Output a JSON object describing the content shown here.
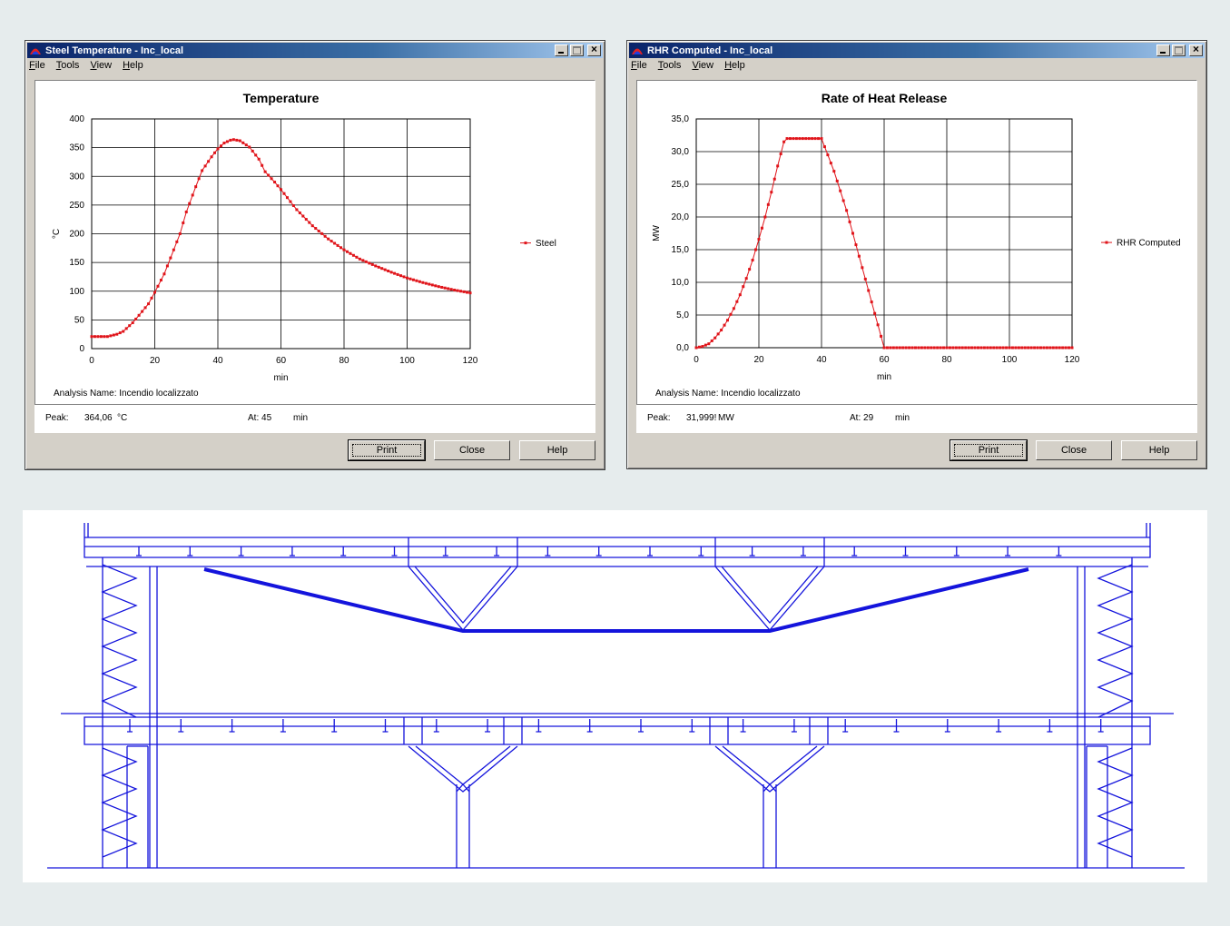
{
  "windows": [
    {
      "id": "steel",
      "title": "Steel Temperature - Inc_local",
      "menu": [
        "File",
        "Tools",
        "View",
        "Help"
      ],
      "chart_title": "Temperature",
      "analysis": "Analysis Name: Incendio localizzato",
      "peak_label": "Peak:",
      "peak_value": "364,06",
      "peak_unit": "°C",
      "at_label": "At: 45",
      "at_unit": "min",
      "buttons": [
        "Print",
        "Close",
        "Help"
      ]
    },
    {
      "id": "rhr",
      "title": "RHR Computed - Inc_local",
      "menu": [
        "File",
        "Tools",
        "View",
        "Help"
      ],
      "chart_title": "Rate of Heat Release",
      "analysis": "Analysis Name: Incendio localizzato",
      "peak_label": "Peak:",
      "peak_value": "31,999!",
      "peak_unit": "MW",
      "at_label": "At: 29",
      "at_unit": "min",
      "buttons": [
        "Print",
        "Close",
        "Help"
      ]
    }
  ],
  "colors": {
    "series": "#e0141a",
    "drawing": "#1414dc",
    "titlebar": "#0a246a"
  },
  "chart_data": [
    {
      "type": "line",
      "title": "Temperature",
      "xlabel": "min",
      "ylabel": "°C",
      "xlim": [
        0,
        120
      ],
      "ylim": [
        0,
        400
      ],
      "xticks": [
        "0",
        "20",
        "40",
        "60",
        "80",
        "100",
        "120"
      ],
      "yticks": [
        "0",
        "50",
        "100",
        "150",
        "200",
        "250",
        "300",
        "350",
        "400"
      ],
      "grid": true,
      "legend": "right",
      "series": [
        {
          "name": "Steel",
          "x": [
            0,
            5,
            8,
            10,
            13,
            15,
            18,
            20,
            23,
            25,
            28,
            30,
            33,
            35,
            38,
            40,
            42,
            44,
            45,
            47,
            50,
            53,
            55,
            58,
            60,
            65,
            70,
            75,
            80,
            85,
            90,
            95,
            100,
            105,
            110,
            115,
            120
          ],
          "y": [
            21,
            21,
            25,
            30,
            45,
            58,
            78,
            98,
            130,
            158,
            200,
            238,
            282,
            310,
            334,
            348,
            358,
            363,
            364,
            362,
            351,
            330,
            308,
            290,
            277,
            242,
            214,
            191,
            172,
            156,
            144,
            133,
            123,
            115,
            108,
            102,
            97
          ]
        }
      ]
    },
    {
      "type": "line",
      "title": "Rate of Heat Release",
      "xlabel": "min",
      "ylabel": "MW",
      "xlim": [
        0,
        120
      ],
      "ylim": [
        0,
        35
      ],
      "xticks": [
        "0",
        "20",
        "40",
        "60",
        "80",
        "100",
        "120"
      ],
      "yticks": [
        "0,0",
        "5,0",
        "10,0",
        "15,0",
        "20,0",
        "25,0",
        "30,0",
        "35,0"
      ],
      "grid": true,
      "legend": "right",
      "series": [
        {
          "name": "RHR Computed",
          "x": [
            0,
            2,
            4,
            6,
            8,
            10,
            12,
            14,
            16,
            18,
            20,
            22,
            24,
            26,
            28,
            29,
            32,
            36,
            40,
            42,
            44,
            46,
            48,
            50,
            52,
            54,
            56,
            58,
            60,
            70,
            80,
            90,
            100,
            110,
            120
          ],
          "y": [
            0,
            0.2,
            0.6,
            1.5,
            2.7,
            4.2,
            6.0,
            8.1,
            10.6,
            13.4,
            16.6,
            20.0,
            23.8,
            27.8,
            31.5,
            32.0,
            32.0,
            32.0,
            32.0,
            29.5,
            27.0,
            24.0,
            21.0,
            17.5,
            14.0,
            10.5,
            7.0,
            3.5,
            0,
            0,
            0,
            0,
            0,
            0,
            0
          ]
        }
      ]
    }
  ]
}
